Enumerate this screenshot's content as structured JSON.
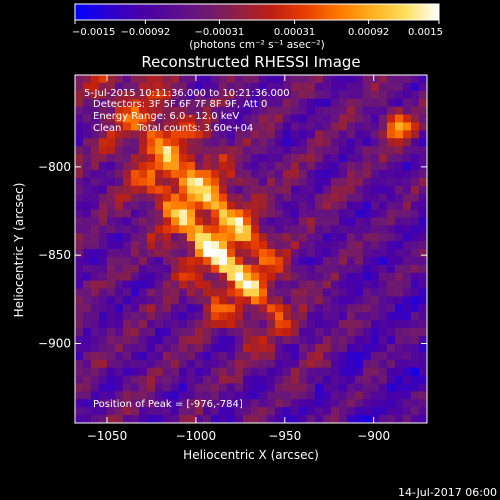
{
  "chart_data": {
    "type": "heatmap",
    "title": "Reconstructed RHESSI Image",
    "xlabel": "Heliocentric X (arcsec)",
    "ylabel": "Heliocentric Y (arcsec)",
    "xlim": [
      -1068,
      -870
    ],
    "ylim": [
      -945,
      -748
    ],
    "x_ticks": [
      -1050,
      -1000,
      -950,
      -900
    ],
    "y_ticks": [
      -800,
      -850,
      -900
    ],
    "x_tick_labels": [
      "−1050",
      "−1000",
      "−950",
      "−900"
    ],
    "y_tick_labels": [
      "−800",
      "−850",
      "−900"
    ],
    "colorbar": {
      "min": -0.0015,
      "max": 0.0015,
      "tick_values": [
        -0.0015,
        -0.00092,
        -0.00031,
        0.00031,
        0.00092,
        0.0015
      ],
      "tick_labels": [
        "−0.0015",
        "−0.00092",
        "−0.00031",
        "0.00031",
        "0.00092",
        "0.0015"
      ],
      "units_label": "(photons cm⁻² s⁻¹ asec⁻²)",
      "colors": [
        "#0000ff",
        "#2a00d0",
        "#4800a8",
        "#5a0c90",
        "#6e1a70",
        "#902040",
        "#c02010",
        "#e84000",
        "#ff7a00",
        "#ffb020",
        "#ffe060",
        "#ffffff"
      ]
    },
    "info_lines": [
      "5-Jul-2015 10:11:36.000 to 10:21:36.000",
      "Detectors: 3F 5F 6F 7F 8F 9F, Att 0",
      "Energy Range: 6.0 - 12.0 keV",
      "Clean     Total counts: 3.60e+04"
    ],
    "peak_label": "Position of Peak = [-976,-784]",
    "peak_position": [
      -976,
      -784
    ],
    "footer_timestamp": "14-Jul-2017 06:00",
    "grid": false
  }
}
